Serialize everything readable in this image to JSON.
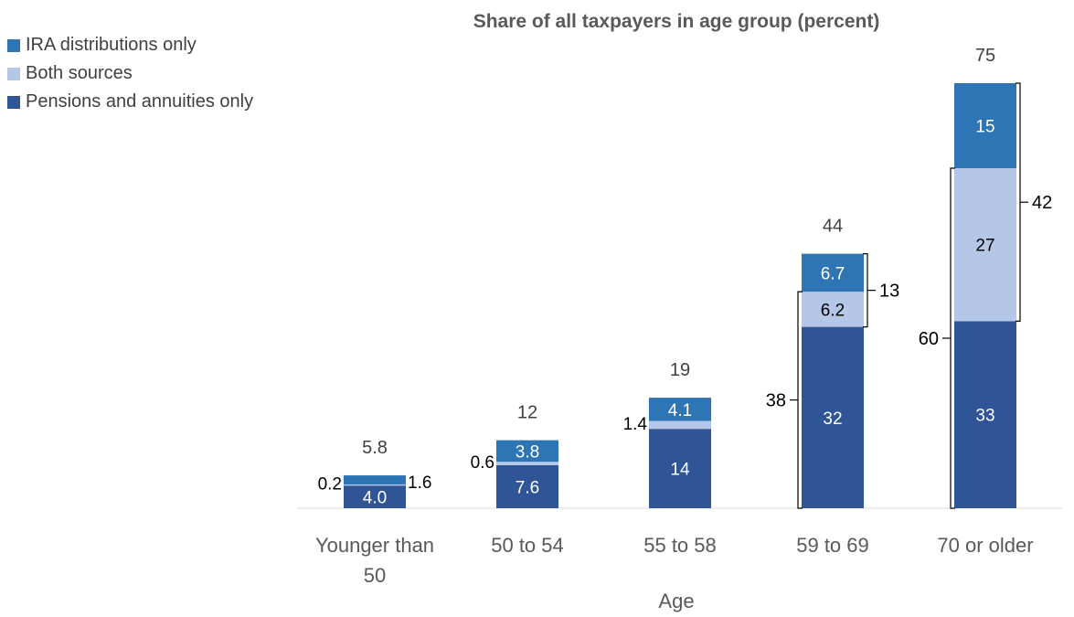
{
  "chart_data": {
    "type": "bar",
    "stacked": true,
    "title": "Share of all taxpayers in age group (percent)",
    "xlabel": "Age",
    "ylabel": "",
    "ylim": [
      0,
      80
    ],
    "grid": false,
    "legend_position": "top-left",
    "categories": [
      "Younger than\n50",
      "50 to 54",
      "55 to 58",
      "59 to 69",
      "70 or older"
    ],
    "series": [
      {
        "name": "Pensions and annuities only",
        "color": "#2f5597",
        "values": [
          4.0,
          7.6,
          14,
          32,
          33
        ],
        "labels": [
          "4.0",
          "7.6",
          "14",
          "32",
          "33"
        ]
      },
      {
        "name": "Both sources",
        "color": "#b4c7e7",
        "values": [
          0.2,
          0.6,
          1.4,
          6.2,
          27
        ],
        "labels": [
          "0.2",
          "0.6",
          "1.4",
          "6.2",
          "27"
        ]
      },
      {
        "name": "IRA distributions only",
        "color": "#2e75b6",
        "values": [
          1.6,
          3.8,
          4.1,
          6.7,
          15
        ],
        "labels": [
          "1.6",
          "3.8",
          "4.1",
          "6.7",
          "15"
        ]
      }
    ],
    "totals": [
      "5.8",
      "12",
      "19",
      "44",
      "75"
    ],
    "bracket_annotations": [
      {
        "category": "59 to 69",
        "spans": [
          "Pensions and annuities only",
          "Both sources"
        ],
        "side": "left",
        "label": "38"
      },
      {
        "category": "59 to 69",
        "spans": [
          "Both sources",
          "IRA distributions only"
        ],
        "side": "right",
        "label": "13"
      },
      {
        "category": "70 or older",
        "spans": [
          "Pensions and annuities only",
          "Both sources"
        ],
        "side": "left",
        "label": "60"
      },
      {
        "category": "70 or older",
        "spans": [
          "Both sources",
          "IRA distributions only"
        ],
        "side": "right",
        "label": "42"
      }
    ]
  },
  "legend": [
    {
      "label": "IRA distributions only",
      "color": "#2e75b6"
    },
    {
      "label": "Both sources",
      "color": "#b4c7e7"
    },
    {
      "label": "Pensions and annuities only",
      "color": "#2f5597"
    }
  ]
}
